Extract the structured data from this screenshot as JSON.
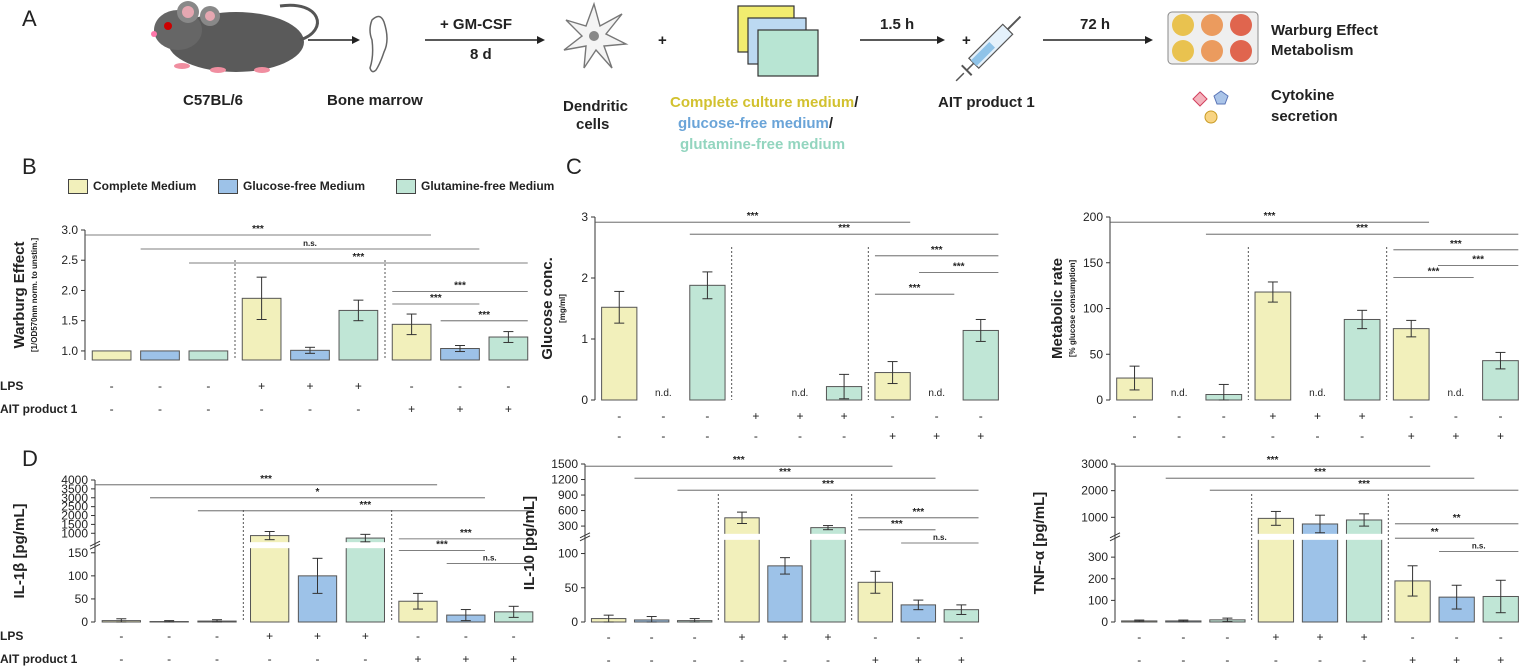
{
  "panel_letters": [
    "A",
    "B",
    "C",
    "D"
  ],
  "workflow": {
    "mouse_label": "C57BL/6",
    "bone_label": "Bone marrow",
    "step1_top": "+ GM-CSF",
    "step1_bottom": "8 d",
    "dc_label_1": "Dendritic",
    "dc_label_2": "cells",
    "plus_1": "+",
    "media_1": "Complete culture medium",
    "media_sep_1": "/",
    "media_2": "glucose-free medium",
    "media_sep_2": "/",
    "media_3": "glutamine-free medium",
    "step2": "1.5 h",
    "plus_2": "+",
    "ait_label": "AIT product 1",
    "step3": "72 h",
    "out_1a": "Warburg Effect",
    "out_1b": "Metabolism",
    "out_2a": "Cytokine",
    "out_2b": "secretion"
  },
  "legend": [
    "Complete Medium",
    "Glucose-free Medium",
    "Glutamine-free Medium"
  ],
  "row_labels": {
    "lps": "LPS",
    "ait": "AIT product 1"
  },
  "colors": {
    "complete": "#f2f0bb",
    "glucose_free": "#9dc2e8",
    "glutamine_free": "#c0e6d6",
    "edge": "#555555"
  },
  "chart_data": [
    {
      "type": "bar",
      "id": "warburg",
      "ylabel": "Warburg Effect",
      "ylabel_sub": "[1/OD570nm norm. to unstim.]",
      "yticks": [
        "1.0",
        "1.5",
        "2.0",
        "2.5",
        "3.0"
      ],
      "ylim": [
        0.85,
        3.0
      ],
      "values": [
        1.0,
        1.0,
        1.0,
        1.87,
        1.01,
        1.67,
        1.44,
        1.04,
        1.23
      ],
      "errors": [
        0,
        0,
        0,
        0.35,
        0.05,
        0.17,
        0.17,
        0.05,
        0.09
      ],
      "notes": [
        "",
        "",
        "",
        "",
        "",
        "",
        "",
        "",
        ""
      ],
      "lps": [
        "-",
        "-",
        "-",
        "+",
        "+",
        "+",
        "-",
        "-",
        "-"
      ],
      "ait": [
        "-",
        "-",
        "-",
        "-",
        "-",
        "-",
        "+",
        "+",
        "+"
      ],
      "sig": [
        {
          "from": 0,
          "to": 6,
          "label": "***",
          "level": 0.0
        },
        {
          "from": 1,
          "to": 7,
          "label": "n.s.",
          "level": 1.0
        },
        {
          "from": 2,
          "to": 8,
          "label": "***",
          "level": 2.0
        },
        {
          "from": 6,
          "to": 8,
          "label": "***",
          "level": 3.6
        },
        {
          "from": 6,
          "to": 7,
          "label": "***",
          "level": 4.5
        },
        {
          "from": 7,
          "to": 8,
          "label": "***",
          "level": 5.7
        }
      ]
    },
    {
      "type": "bar",
      "id": "glucose",
      "ylabel": "Glucose conc.",
      "ylabel_sub": "[mg/ml]",
      "yticks": [
        "0",
        "1",
        "2",
        "3"
      ],
      "ylim": [
        0,
        3
      ],
      "values": [
        1.52,
        0,
        1.88,
        0,
        0,
        0.22,
        0.45,
        0,
        1.14
      ],
      "errors": [
        0.26,
        0,
        0.22,
        0,
        0,
        0.2,
        0.18,
        0,
        0.18
      ],
      "notes": [
        "",
        "n.d.",
        "",
        "",
        "n.d.",
        "",
        "",
        "n.d.",
        ""
      ],
      "lps": [
        "-",
        "-",
        "-",
        "+",
        "+",
        "+",
        "-",
        "-",
        "-"
      ],
      "ait": [
        "-",
        "-",
        "-",
        "-",
        "-",
        "-",
        "+",
        "+",
        "+"
      ],
      "sig": [
        {
          "from": 0,
          "to": 6,
          "label": "***",
          "level": 0.0
        },
        {
          "from": 2,
          "to": 8,
          "label": "***",
          "level": 1.0
        },
        {
          "from": 6,
          "to": 8,
          "label": "***",
          "level": 2.8
        },
        {
          "from": 7,
          "to": 8,
          "label": "***",
          "level": 3.7
        },
        {
          "from": 6,
          "to": 7,
          "label": "***",
          "level": 5.5
        }
      ]
    },
    {
      "type": "bar",
      "id": "metabolic",
      "ylabel": "Metabolic rate",
      "ylabel_sub": "[% glucose consumption]",
      "yticks": [
        "0",
        "50",
        "100",
        "150",
        "200"
      ],
      "ylim": [
        0,
        200
      ],
      "values": [
        24,
        0,
        6,
        118,
        0,
        88,
        78,
        0,
        43
      ],
      "errors": [
        13,
        0,
        11,
        11,
        0,
        10,
        9,
        0,
        9
      ],
      "notes": [
        "",
        "n.d.",
        "",
        "",
        "n.d.",
        "",
        "",
        "n.d.",
        ""
      ],
      "lps": [
        "-",
        "-",
        "-",
        "+",
        "+",
        "+",
        "-",
        "-",
        "-"
      ],
      "ait": [
        "-",
        "-",
        "-",
        "-",
        "-",
        "-",
        "+",
        "+",
        "+"
      ],
      "sig": [
        {
          "from": 0,
          "to": 6,
          "label": "***",
          "level": 0.0
        },
        {
          "from": 2,
          "to": 8,
          "label": "***",
          "level": 1.0
        },
        {
          "from": 6,
          "to": 8,
          "label": "***",
          "level": 2.3
        },
        {
          "from": 7,
          "to": 8,
          "label": "***",
          "level": 3.1
        },
        {
          "from": 6,
          "to": 7,
          "label": "***",
          "level": 4.1
        }
      ]
    },
    {
      "type": "bar",
      "id": "il1b",
      "broken_axis": true,
      "ylabel": "IL-1β [pg/mL]",
      "yticks_low": [
        "0",
        "50",
        "100",
        "150"
      ],
      "yticks_high": [
        "1000",
        "1500",
        "2000",
        "2500",
        "3000",
        "3500",
        "4000"
      ],
      "lower_range": [
        0,
        160
      ],
      "upper_range": [
        500,
        4000
      ],
      "values": [
        3,
        1,
        2,
        870,
        100,
        730,
        45,
        15,
        22
      ],
      "errors": [
        4,
        2,
        3,
        230,
        38,
        210,
        17,
        12,
        12
      ],
      "lps": [
        "-",
        "-",
        "-",
        "+",
        "+",
        "+",
        "-",
        "-",
        "-"
      ],
      "ait": [
        "-",
        "-",
        "-",
        "-",
        "-",
        "-",
        "+",
        "+",
        "+"
      ],
      "sig": [
        {
          "from": 0,
          "to": 6,
          "label": "***",
          "level": 0.0
        },
        {
          "from": 1,
          "to": 7,
          "label": "*",
          "level": 1.0
        },
        {
          "from": 2,
          "to": 8,
          "label": "***",
          "level": 2.0
        },
        {
          "from": 6,
          "to": 8,
          "label": "***",
          "level": 3.7
        },
        {
          "from": 6,
          "to": 7,
          "label": "***",
          "level": 4.6
        },
        {
          "from": 7,
          "to": 8,
          "label": "n.s.",
          "level": 5.6
        }
      ]
    },
    {
      "type": "bar",
      "id": "il10",
      "broken_axis": true,
      "ylabel": "IL-10 [pg/mL]",
      "yticks_low": [
        "0",
        "50",
        "100"
      ],
      "yticks_high": [
        "300",
        "600",
        "900",
        "1200",
        "1500"
      ],
      "lower_range": [
        0,
        120
      ],
      "upper_range": [
        150,
        1500
      ],
      "values": [
        5,
        3,
        2,
        460,
        82,
        270,
        58,
        25,
        18
      ],
      "errors": [
        5,
        5,
        3,
        110,
        12,
        40,
        16,
        7,
        7
      ],
      "lps": [
        "-",
        "-",
        "-",
        "+",
        "+",
        "+",
        "-",
        "-",
        "-"
      ],
      "ait": [
        "-",
        "-",
        "-",
        "-",
        "-",
        "-",
        "+",
        "+",
        "+"
      ],
      "sig": [
        {
          "from": 0,
          "to": 6,
          "label": "***",
          "level": 0.0
        },
        {
          "from": 1,
          "to": 7,
          "label": "***",
          "level": 1.0
        },
        {
          "from": 2,
          "to": 8,
          "label": "***",
          "level": 2.0
        },
        {
          "from": 6,
          "to": 8,
          "label": "***",
          "level": 3.8
        },
        {
          "from": 6,
          "to": 7,
          "label": "***",
          "level": 4.8
        },
        {
          "from": 7,
          "to": 8,
          "label": "n.s.",
          "level": 5.9
        }
      ]
    },
    {
      "type": "bar",
      "id": "tnfa",
      "broken_axis": true,
      "ylabel": "TNF-α [pg/mL]",
      "yticks_low": [
        "0",
        "100",
        "200",
        "300"
      ],
      "yticks_high": [
        "1000",
        "2000",
        "3000"
      ],
      "lower_range": [
        0,
        380
      ],
      "upper_range": [
        380,
        3000
      ],
      "values": [
        5,
        5,
        10,
        960,
        750,
        900,
        190,
        115,
        118
      ],
      "errors": [
        4,
        4,
        8,
        260,
        330,
        230,
        70,
        55,
        75
      ],
      "lps": [
        "-",
        "-",
        "-",
        "+",
        "+",
        "+",
        "-",
        "-",
        "-"
      ],
      "ait": [
        "-",
        "-",
        "-",
        "-",
        "-",
        "-",
        "+",
        "+",
        "+"
      ],
      "sig": [
        {
          "from": 0,
          "to": 6,
          "label": "***",
          "level": 0.0
        },
        {
          "from": 1,
          "to": 7,
          "label": "***",
          "level": 1.0
        },
        {
          "from": 2,
          "to": 8,
          "label": "***",
          "level": 2.0
        },
        {
          "from": 6,
          "to": 8,
          "label": "**",
          "level": 4.3
        },
        {
          "from": 6,
          "to": 7,
          "label": "**",
          "level": 5.5
        },
        {
          "from": 7,
          "to": 8,
          "label": "n.s.",
          "level": 6.6
        }
      ]
    }
  ]
}
